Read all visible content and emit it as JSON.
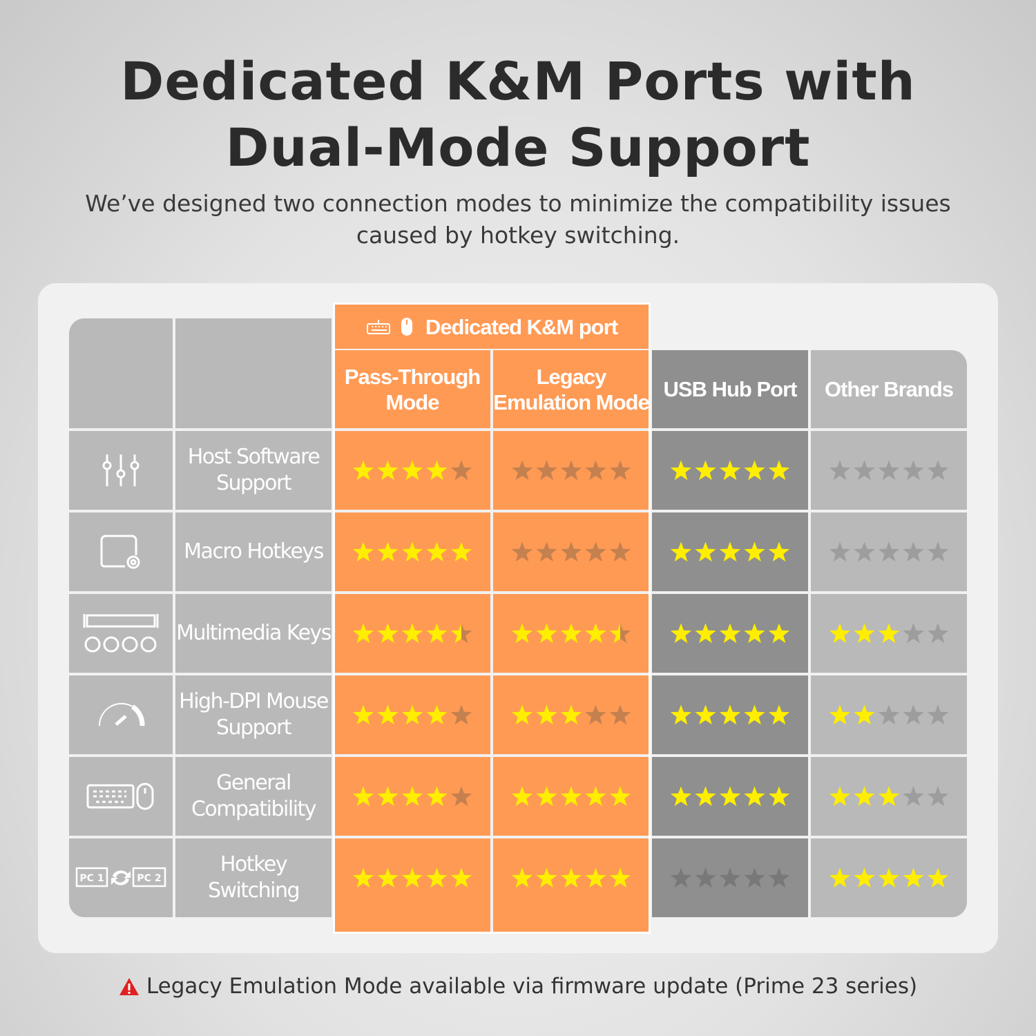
{
  "title_line1": "Dedicated K&M Ports with",
  "title_line2": "Dual-Mode Support",
  "subtitle": "We’ve designed two connection modes to minimize the compatibility issues caused by hotkey switching.",
  "group_header": {
    "icons": [
      "keyboard-icon",
      "mouse-icon"
    ],
    "label": "Dedicated K&M port"
  },
  "columns": [
    "Pass-Through Mode",
    "Legacy Emulation Mode",
    "USB Hub Port",
    "Other Brands"
  ],
  "rows": [
    {
      "icon": "sliders-icon",
      "label": "Host Software Support",
      "ratings": [
        4,
        0,
        5,
        0
      ]
    },
    {
      "icon": "macro-key-icon",
      "label": "Macro Hotkeys",
      "ratings": [
        5,
        0,
        5,
        0
      ]
    },
    {
      "icon": "media-keys-icon",
      "label": "Multimedia Keys",
      "ratings": [
        4.5,
        4.5,
        5,
        3
      ]
    },
    {
      "icon": "speedometer-icon",
      "label": "High-DPI Mouse Support",
      "ratings": [
        4,
        3,
        5,
        2
      ]
    },
    {
      "icon": "keyboard-mouse-icon",
      "label": "General Compatibility",
      "ratings": [
        4,
        5,
        5,
        3
      ]
    },
    {
      "icon": "pc-switch-icon",
      "label": "Hotkey Switching",
      "ratings": [
        5,
        5,
        0,
        5
      ]
    }
  ],
  "rating_max": 5,
  "icon_text": {
    "pc1": "PC 1",
    "pc2": "PC 2"
  },
  "colors": {
    "accent": "#ff9a55",
    "star_filled": "#ffee00",
    "grey_cell": "#b9b9b9",
    "usb_cell": "#8f8f8f"
  },
  "footnote": "Legacy Emulation Mode available via firmware update (Prime 23 series)"
}
